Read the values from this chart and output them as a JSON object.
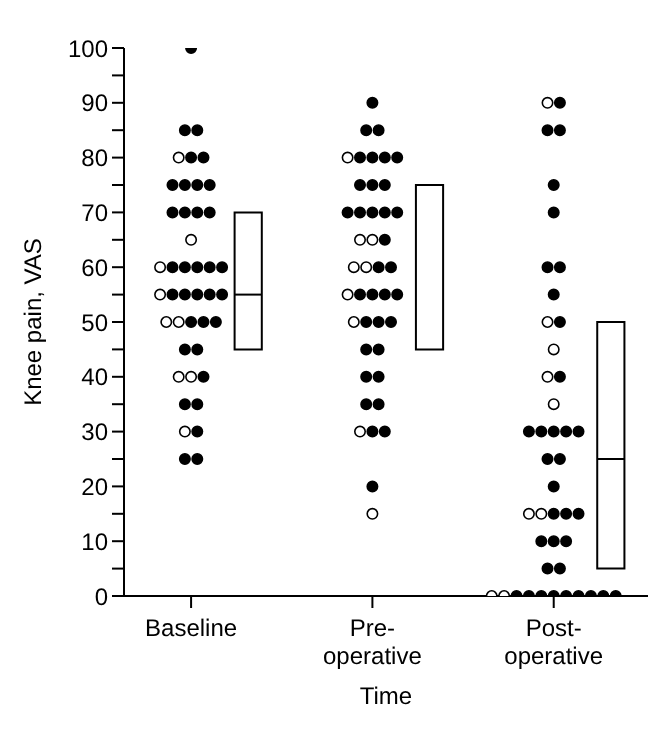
{
  "chart_data": {
    "type": "box",
    "xlabel": "Time",
    "ylabel": "Knee pain, VAS",
    "categories": [
      "Baseline",
      "Pre-\noperative",
      "Post-\noperative"
    ],
    "ylim": [
      0,
      100
    ],
    "yticks": [
      0,
      {
        "value": 5,
        "label": null
      },
      10,
      {
        "value": 15,
        "label": null
      },
      20,
      {
        "value": 25,
        "label": null
      },
      30,
      {
        "value": 35,
        "label": null
      },
      40,
      {
        "value": 45,
        "label": null
      },
      50,
      {
        "value": 55,
        "label": null
      },
      60,
      {
        "value": 65,
        "label": null
      },
      70,
      {
        "value": 75,
        "label": null
      },
      80,
      {
        "value": 85,
        "label": null
      },
      90,
      {
        "value": 95,
        "label": null
      },
      100
    ],
    "grid": false,
    "legend": false,
    "marker": "circle",
    "boxes": [
      {
        "low": 45,
        "q1": 45,
        "median": 55,
        "q3": 70,
        "high": 70
      },
      {
        "low": 45,
        "q1": 45,
        "median": 75,
        "q3": 75,
        "high": 75
      },
      {
        "low": 5,
        "q1": 5,
        "median": 25,
        "q3": 50,
        "high": 50
      }
    ],
    "series": [
      {
        "type": "scatter",
        "color": "#ffffff",
        "x": [
          "Baseline",
          "Baseline",
          "Baseline",
          "Baseline",
          "Baseline",
          "Baseline",
          "Baseline",
          "Baseline",
          "Baseline",
          "Pre-\noperative",
          "Pre-\noperative",
          "Pre-\noperative",
          "Pre-\noperative",
          "Pre-\noperative",
          "Pre-\noperative",
          "Pre-\noperative",
          "Pre-\noperative",
          "Pre-\noperative",
          "Post-\noperative",
          "Post-\noperative",
          "Post-\noperative",
          "Post-\noperative",
          "Post-\noperative",
          "Post-\noperative",
          "Post-\noperative",
          "Post-\noperative",
          "Post-\noperative"
        ],
        "values": [
          80,
          65,
          60,
          55,
          50,
          50,
          40,
          40,
          30,
          80,
          65,
          65,
          60,
          60,
          55,
          50,
          30,
          15,
          90,
          50,
          45,
          40,
          35,
          15,
          15,
          0,
          0
        ]
      },
      {
        "type": "scatter",
        "color": "#000000",
        "x": [
          "Baseline",
          "Baseline",
          "Baseline",
          "Baseline",
          "Baseline",
          "Baseline",
          "Baseline",
          "Baseline",
          "Baseline",
          "Baseline",
          "Baseline",
          "Baseline",
          "Baseline",
          "Baseline",
          "Baseline",
          "Baseline",
          "Baseline",
          "Baseline",
          "Baseline",
          "Baseline",
          "Baseline",
          "Baseline",
          "Baseline",
          "Baseline",
          "Baseline",
          "Baseline",
          "Baseline",
          "Baseline",
          "Baseline",
          "Baseline",
          "Baseline",
          "Baseline",
          "Baseline",
          "Baseline",
          "Pre-\noperative",
          "Pre-\noperative",
          "Pre-\noperative",
          "Pre-\noperative",
          "Pre-\noperative",
          "Pre-\noperative",
          "Pre-\noperative",
          "Pre-\noperative",
          "Pre-\noperative",
          "Pre-\noperative",
          "Pre-\noperative",
          "Pre-\noperative",
          "Pre-\noperative",
          "Pre-\noperative",
          "Pre-\noperative",
          "Pre-\noperative",
          "Pre-\noperative",
          "Pre-\noperative",
          "Pre-\noperative",
          "Pre-\noperative",
          "Pre-\noperative",
          "Pre-\noperative",
          "Pre-\noperative",
          "Pre-\noperative",
          "Pre-\noperative",
          "Pre-\noperative",
          "Pre-\noperative",
          "Pre-\noperative",
          "Pre-\noperative",
          "Pre-\noperative",
          "Pre-\noperative",
          "Pre-\noperative",
          "Pre-\noperative",
          "Pre-\noperative",
          "Post-\noperative",
          "Post-\noperative",
          "Post-\noperative",
          "Post-\noperative",
          "Post-\noperative",
          "Post-\noperative",
          "Post-\noperative",
          "Post-\noperative",
          "Post-\noperative",
          "Post-\noperative",
          "Post-\noperative",
          "Post-\noperative",
          "Post-\noperative",
          "Post-\noperative",
          "Post-\noperative",
          "Post-\noperative",
          "Post-\noperative",
          "Post-\noperative",
          "Post-\noperative",
          "Post-\noperative",
          "Post-\noperative",
          "Post-\noperative",
          "Post-\noperative",
          "Post-\noperative",
          "Post-\noperative",
          "Post-\noperative",
          "Post-\noperative",
          "Post-\noperative",
          "Post-\noperative",
          "Post-\noperative",
          "Post-\noperative",
          "Post-\noperative",
          "Post-\noperative",
          "Post-\noperative",
          "Post-\noperative"
        ],
        "values": [
          100,
          85,
          85,
          80,
          80,
          75,
          75,
          75,
          75,
          70,
          70,
          70,
          70,
          60,
          60,
          60,
          60,
          60,
          55,
          55,
          55,
          55,
          55,
          50,
          50,
          50,
          45,
          45,
          40,
          35,
          35,
          30,
          25,
          25,
          90,
          85,
          85,
          80,
          80,
          80,
          80,
          75,
          75,
          75,
          70,
          70,
          70,
          70,
          70,
          65,
          60,
          60,
          55,
          55,
          55,
          55,
          50,
          50,
          50,
          45,
          45,
          40,
          40,
          35,
          35,
          30,
          30,
          20,
          90,
          85,
          85,
          75,
          70,
          60,
          60,
          55,
          50,
          40,
          30,
          30,
          30,
          30,
          30,
          25,
          25,
          20,
          15,
          15,
          15,
          10,
          10,
          10,
          5,
          5,
          0,
          0,
          0,
          0,
          0,
          0,
          0,
          0,
          0
        ]
      }
    ]
  }
}
